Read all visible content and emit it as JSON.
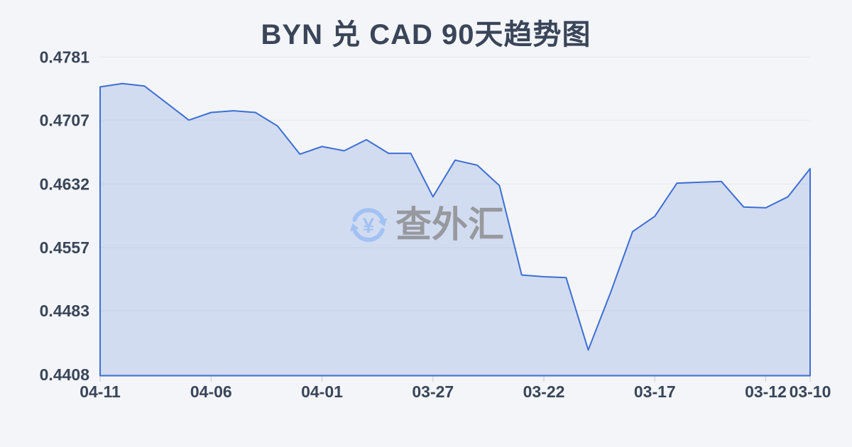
{
  "page": {
    "background": "#f3f5f8"
  },
  "header": {
    "title": "BYN 兑 CAD 90天趋势图"
  },
  "watermark": {
    "text": "查外汇",
    "symbol": "¥"
  },
  "chart_data": {
    "type": "area",
    "title": "BYN 兑 CAD 90天趋势图",
    "x": [
      "04-11",
      "04-10",
      "04-09",
      "04-08",
      "04-07",
      "04-06",
      "04-05",
      "04-04",
      "04-03",
      "04-02",
      "04-01",
      "03-31",
      "03-30",
      "03-29",
      "03-28",
      "03-27",
      "03-26",
      "03-25",
      "03-24",
      "03-23",
      "03-22",
      "03-21",
      "03-20",
      "03-19",
      "03-18",
      "03-17",
      "03-16",
      "03-15",
      "03-14",
      "03-13",
      "03-12",
      "03-11",
      "03-10"
    ],
    "values": [
      0.4746,
      0.475,
      0.4747,
      0.4727,
      0.4707,
      0.4716,
      0.4718,
      0.4716,
      0.47,
      0.4667,
      0.4676,
      0.4671,
      0.4684,
      0.4668,
      0.4668,
      0.4617,
      0.466,
      0.4654,
      0.463,
      0.4525,
      0.4523,
      0.4522,
      0.4437,
      0.4504,
      0.4576,
      0.4594,
      0.4633,
      0.4634,
      0.4635,
      0.4605,
      0.4604,
      0.4617,
      0.465
    ],
    "x_tick_labels": [
      "04-11",
      "04-06",
      "04-01",
      "03-27",
      "03-22",
      "03-17",
      "03-12",
      "03-10"
    ],
    "x_tick_indices": [
      0,
      5,
      10,
      15,
      20,
      25,
      30,
      32
    ],
    "y_ticks": [
      0.4781,
      0.4707,
      0.4632,
      0.4557,
      0.4483,
      0.4408
    ],
    "y_tick_labels": [
      "0.4781",
      "0.4707",
      "0.4632",
      "0.4557",
      "0.4483",
      "0.4408"
    ],
    "ylim": [
      0.4408,
      0.4781
    ],
    "grid": true,
    "legend": "none",
    "xlabel": "",
    "ylabel": "",
    "colors": {
      "line": "#3e6fd3",
      "fill": "rgba(62,110,210,0.18)",
      "axis_text": "#3a4559",
      "title_text": "#3a4559",
      "gridline": "#e6e8ec",
      "tick_mark": "#c6cbd4",
      "watermark_text": "#97999e",
      "watermark_icon": "#a3c2f3",
      "background": "#f3f5f8"
    }
  }
}
